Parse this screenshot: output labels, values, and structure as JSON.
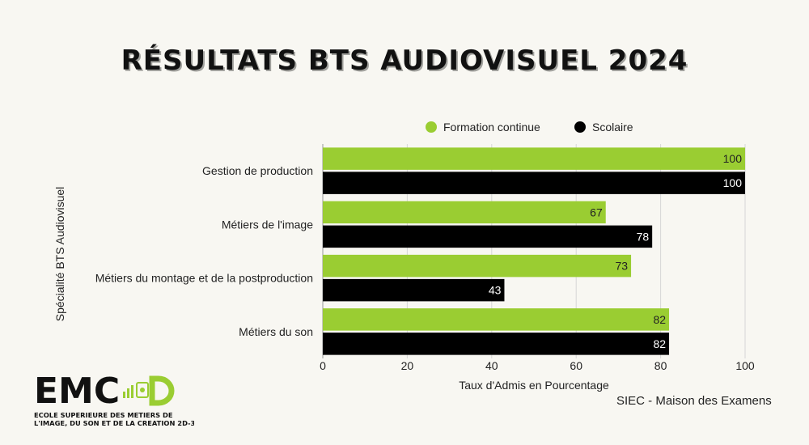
{
  "chart_data": {
    "type": "bar",
    "orientation": "horizontal",
    "title": "RÉSULTATS BTS AUDIOVISUEL 2024",
    "xlabel": "Taux d'Admis en Pourcentage",
    "ylabel": "Spécialité BTS Audiovisuel",
    "xlim": [
      0,
      100
    ],
    "xticks": [
      "0",
      "20",
      "40",
      "60",
      "80",
      "100"
    ],
    "grid": true,
    "legend_position": "top",
    "categories": [
      "Gestion de production",
      "Métiers de l'image",
      "Métiers du montage et de la postproduction",
      "Métiers du son"
    ],
    "series": [
      {
        "name": "Formation continue",
        "values": [
          100,
          67,
          73,
          82
        ],
        "color": "#9acd32",
        "label_color": "#222222"
      },
      {
        "name": "Scolaire",
        "values": [
          100,
          78,
          43,
          82
        ],
        "color": "#000000",
        "label_color": "#ffffff"
      }
    ]
  },
  "source": "SIEC - Maison des Examens",
  "logo": {
    "wordmark": "EMC",
    "tagline_line1": "ECOLE SUPERIEURE DES METIERS DE",
    "tagline_line2": "L'IMAGE, DU SON ET DE LA CREATION 2D-3D",
    "accent_color": "#9acd32"
  }
}
